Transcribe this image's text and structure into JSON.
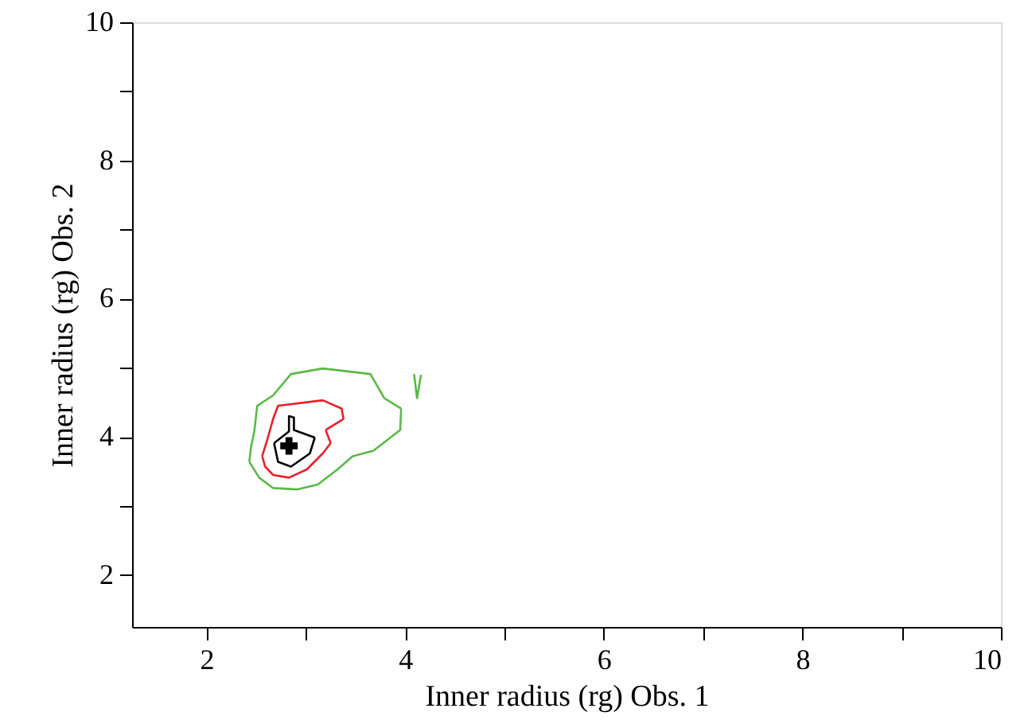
{
  "chart_data": {
    "type": "line",
    "xlabel": "Inner radius (rg) Obs. 1",
    "ylabel": "Inner radius (rg) Obs. 2",
    "xlim": [
      1.25,
      10
    ],
    "ylim": [
      1.25,
      10
    ],
    "xticks": [
      2,
      {
        "value": 3,
        "label": null
      },
      4,
      {
        "value": 5,
        "label": null
      },
      6,
      {
        "value": 7,
        "label": null
      },
      8,
      {
        "value": 9,
        "label": null
      },
      10
    ],
    "yticks": [
      2,
      {
        "value": 3,
        "label": null
      },
      4,
      {
        "value": 5,
        "label": null
      },
      6,
      {
        "value": 7,
        "label": null
      },
      8,
      {
        "value": 9,
        "label": null
      },
      10
    ],
    "grid": false,
    "legend": false,
    "series": [
      {
        "type": "line",
        "color": "#5ab946",
        "x": [
          2.43,
          2.45,
          2.48,
          2.51,
          2.67,
          2.85,
          3.17,
          3.65,
          3.79,
          3.96
        ],
        "values": [
          3.64,
          3.87,
          4.07,
          4.45,
          4.6,
          4.91,
          4.99,
          4.91,
          4.56,
          4.41
        ]
      },
      {
        "type": "line",
        "color": "#5ab946",
        "x": [
          2.43,
          2.53,
          2.67,
          2.91,
          3.12,
          3.32,
          3.47,
          3.68,
          3.95,
          3.96
        ],
        "values": [
          3.64,
          3.41,
          3.26,
          3.24,
          3.31,
          3.53,
          3.72,
          3.8,
          4.1,
          4.41
        ]
      },
      {
        "type": "line",
        "color": "#5ab946",
        "x": [
          4.09,
          4.12,
          4.16
        ],
        "values": [
          4.91,
          4.56,
          4.9
        ]
      },
      {
        "type": "line",
        "color": "#e8202a",
        "x": [
          2.56,
          2.61,
          2.67,
          2.72,
          3.17,
          3.36,
          3.38
        ],
        "values": [
          3.72,
          3.95,
          4.26,
          4.45,
          4.53,
          4.41,
          4.26
        ]
      },
      {
        "type": "line",
        "color": "#e8202a",
        "x": [
          3.2,
          3.38
        ],
        "values": [
          4.1,
          4.26
        ]
      },
      {
        "type": "line",
        "color": "#e8202a",
        "x": [
          3.2,
          3.25
        ],
        "values": [
          4.1,
          3.91
        ]
      },
      {
        "type": "line",
        "color": "#e8202a",
        "x": [
          2.56,
          2.59,
          2.67,
          2.83,
          3.01,
          3.17,
          3.25
        ],
        "values": [
          3.72,
          3.57,
          3.45,
          3.41,
          3.53,
          3.76,
          3.91
        ]
      },
      {
        "type": "line",
        "color": "#000000",
        "x": [
          2.68,
          2.83,
          2.83,
          2.88,
          2.88,
          3.09
        ],
        "values": [
          3.91,
          4.08,
          4.3,
          4.28,
          4.1,
          3.99
        ]
      },
      {
        "type": "line",
        "color": "#000000",
        "x": [
          2.68,
          2.72,
          2.85,
          3.04,
          3.09
        ],
        "values": [
          3.91,
          3.64,
          3.57,
          3.76,
          3.99
        ]
      },
      {
        "type": "scatter",
        "color": "#000000",
        "marker": "cross",
        "x": [
          2.83
        ],
        "values": [
          3.87
        ]
      }
    ]
  }
}
